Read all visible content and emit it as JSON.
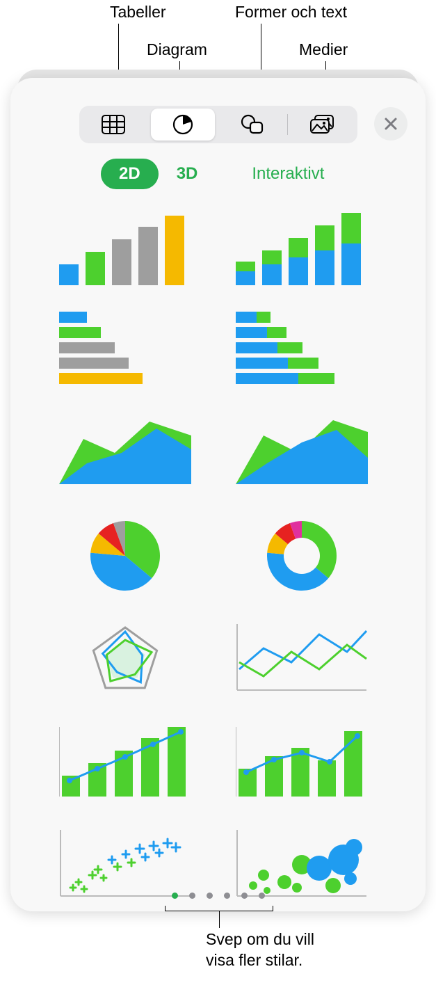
{
  "callouts": {
    "tables": "Tabeller",
    "charts": "Diagram",
    "shapes": "Former och text",
    "media": "Medier",
    "swipe": "Svep om du vill\nvisa fler stilar."
  },
  "toolbar": {
    "items": [
      {
        "name": "tables-icon"
      },
      {
        "name": "charts-icon",
        "active": true
      },
      {
        "name": "shapes-icon"
      },
      {
        "name": "media-icon"
      }
    ]
  },
  "dimTabs": {
    "d2": "2D",
    "d3": "3D",
    "interactive": "Interaktivt"
  },
  "colors": {
    "blue": "#1f9cf0",
    "green": "#4dd02e",
    "gray": "#9e9e9e",
    "yellow": "#f5b900",
    "dkgreen": "#2ca02c",
    "red": "#e62221",
    "magenta": "#e0309e",
    "cyan": "#14b9d6",
    "darkblue": "#1e6bc7",
    "light": "#d9f2e0"
  },
  "charts": {
    "bar1": {
      "heights": [
        30,
        48,
        66,
        84,
        100
      ],
      "colors": [
        "blue",
        "green",
        "gray",
        "gray",
        "yellow"
      ]
    },
    "bar2": {
      "heights": [
        [
          20,
          14
        ],
        [
          30,
          20
        ],
        [
          40,
          28
        ],
        [
          50,
          36
        ],
        [
          60,
          44
        ]
      ],
      "c1": "blue",
      "c2": "green"
    },
    "hbar1": {
      "widths": [
        40,
        60,
        80,
        100,
        120
      ],
      "colors": [
        "blue",
        "green",
        "gray",
        "gray",
        "yellow"
      ]
    },
    "hbar2": {
      "widths": [
        [
          30,
          20
        ],
        [
          45,
          28
        ],
        [
          60,
          36
        ],
        [
          75,
          44
        ],
        [
          90,
          52
        ]
      ],
      "c1": "blue",
      "c2": "green"
    },
    "area1": {
      "back": "green",
      "front": "blue",
      "backPts": "0,100 35,35 80,55 130,10 190,30 190,100",
      "frontPts": "0,100 40,70 90,55 140,20 190,50 190,100"
    },
    "area2": {
      "back": "green",
      "front": "blue",
      "backPts": "0,100 40,30 90,55 140,8 190,25 190,100",
      "frontPts": "0,100 45,70 95,40 145,22 190,62 190,100"
    },
    "pie": {
      "slices": [
        {
          "c": "green",
          "a0": 0,
          "a1": 130
        },
        {
          "c": "blue",
          "a0": 130,
          "a1": 275
        },
        {
          "c": "yellow",
          "a0": 275,
          "a1": 310
        },
        {
          "c": "red",
          "a0": 310,
          "a1": 340
        },
        {
          "c": "gray",
          "a0": 340,
          "a1": 360
        }
      ]
    },
    "donut": {
      "slices": [
        {
          "c": "green",
          "a0": 0,
          "a1": 130
        },
        {
          "c": "blue",
          "a0": 130,
          "a1": 275
        },
        {
          "c": "yellow",
          "a0": 275,
          "a1": 310
        },
        {
          "c": "red",
          "a0": 310,
          "a1": 340
        },
        {
          "c": "magenta",
          "a0": 340,
          "a1": 360
        }
      ]
    },
    "radar": {
      "outer": "gray",
      "line1": "blue",
      "line2": "green",
      "fill": "light"
    },
    "lines": {
      "l1": "blue",
      "l2": "green",
      "p1": "5,70 40,40 80,60 120,20 160,45 188,15",
      "p2": "5,60 40,80 80,45 120,70 160,35 188,55"
    },
    "combo1": {
      "bars": [
        30,
        48,
        66,
        84,
        100
      ],
      "barColor": "green",
      "line": "blue",
      "lp": "15,82 55,65 95,48 135,30 175,12"
    },
    "combo2": {
      "bars": [
        40,
        58,
        70,
        52,
        94
      ],
      "barColor": "green",
      "line": "blue",
      "lp": "15,70 55,52 95,42 135,55 175,18"
    },
    "scatter": {
      "c1": "green",
      "c2": "blue",
      "pts": [
        [
          20,
          88,
          4,
          "g"
        ],
        [
          28,
          80,
          4,
          "g"
        ],
        [
          36,
          90,
          4,
          "g"
        ],
        [
          48,
          70,
          5,
          "g"
        ],
        [
          56,
          62,
          5,
          "g"
        ],
        [
          64,
          74,
          4,
          "g"
        ],
        [
          76,
          48,
          5,
          "b"
        ],
        [
          84,
          58,
          5,
          "g"
        ],
        [
          96,
          40,
          5,
          "b"
        ],
        [
          104,
          52,
          5,
          "g"
        ],
        [
          116,
          32,
          6,
          "b"
        ],
        [
          124,
          44,
          5,
          "b"
        ],
        [
          136,
          28,
          6,
          "b"
        ],
        [
          144,
          38,
          5,
          "b"
        ],
        [
          156,
          24,
          6,
          "b"
        ],
        [
          168,
          30,
          6,
          "b"
        ]
      ]
    },
    "bubble": {
      "c1": "green",
      "c2": "blue",
      "pts": [
        [
          25,
          85,
          6,
          "g"
        ],
        [
          45,
          92,
          5,
          "g"
        ],
        [
          40,
          70,
          8,
          "g"
        ],
        [
          70,
          80,
          10,
          "g"
        ],
        [
          95,
          55,
          14,
          "g"
        ],
        [
          88,
          88,
          7,
          "g"
        ],
        [
          120,
          60,
          18,
          "b"
        ],
        [
          155,
          48,
          22,
          "b"
        ],
        [
          140,
          85,
          11,
          "g"
        ],
        [
          170,
          30,
          12,
          "b"
        ],
        [
          165,
          75,
          9,
          "b"
        ]
      ]
    }
  },
  "pageDots": {
    "count": 6,
    "active": 0
  }
}
